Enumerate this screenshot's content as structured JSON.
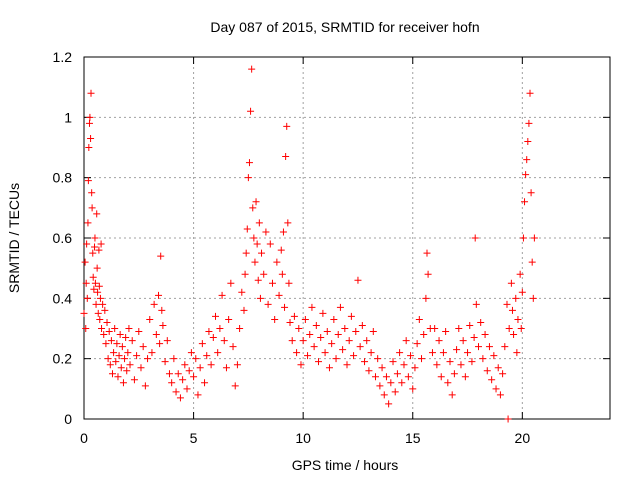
{
  "chart_data": {
    "type": "scatter",
    "title": "Day 087 of 2015, SRMTID for receiver hofn",
    "xlabel": "GPS time / hours",
    "ylabel": "SRMTID / TECUs",
    "xlim": [
      0,
      24
    ],
    "ylim": [
      0,
      1.2
    ],
    "x_ticks": [
      0,
      5,
      10,
      15,
      20
    ],
    "x_tick_labels": [
      "0",
      "5",
      "10",
      "15",
      "20"
    ],
    "y_ticks": [
      0,
      0.2,
      0.4,
      0.6,
      0.8,
      1.0,
      1.2
    ],
    "y_tick_labels": [
      "0",
      "0.2",
      "0.4",
      "0.6",
      "0.8",
      "1",
      "1.2"
    ],
    "grid": true,
    "marker": "+",
    "marker_color": "#ff0000",
    "series": [
      {
        "name": "SRMTID",
        "points": [
          [
            0.0,
            0.35
          ],
          [
            0.05,
            0.52
          ],
          [
            0.08,
            0.3
          ],
          [
            0.1,
            0.45
          ],
          [
            0.12,
            0.58
          ],
          [
            0.15,
            0.4
          ],
          [
            0.18,
            0.65
          ],
          [
            0.2,
            0.79
          ],
          [
            0.22,
            0.9
          ],
          [
            0.25,
            0.98
          ],
          [
            0.27,
            1.0
          ],
          [
            0.3,
            0.93
          ],
          [
            0.32,
            1.08
          ],
          [
            0.35,
            0.75
          ],
          [
            0.37,
            0.7
          ],
          [
            0.4,
            0.55
          ],
          [
            0.42,
            0.47
          ],
          [
            0.45,
            0.43
          ],
          [
            0.48,
            0.57
          ],
          [
            0.5,
            0.6
          ],
          [
            0.52,
            0.45
          ],
          [
            0.55,
            0.38
          ],
          [
            0.58,
            0.68
          ],
          [
            0.6,
            0.5
          ],
          [
            0.62,
            0.42
          ],
          [
            0.65,
            0.35
          ],
          [
            0.68,
            0.56
          ],
          [
            0.7,
            0.44
          ],
          [
            0.72,
            0.33
          ],
          [
            0.75,
            0.4
          ],
          [
            0.78,
            0.58
          ],
          [
            0.8,
            0.3
          ],
          [
            0.85,
            0.38
          ],
          [
            0.9,
            0.28
          ],
          [
            0.95,
            0.36
          ],
          [
            1.0,
            0.25
          ],
          [
            1.05,
            0.32
          ],
          [
            1.1,
            0.2
          ],
          [
            1.15,
            0.29
          ],
          [
            1.2,
            0.18
          ],
          [
            1.25,
            0.26
          ],
          [
            1.3,
            0.15
          ],
          [
            1.35,
            0.22
          ],
          [
            1.4,
            0.3
          ],
          [
            1.45,
            0.19
          ],
          [
            1.5,
            0.25
          ],
          [
            1.55,
            0.14
          ],
          [
            1.6,
            0.21
          ],
          [
            1.65,
            0.28
          ],
          [
            1.7,
            0.17
          ],
          [
            1.75,
            0.24
          ],
          [
            1.8,
            0.12
          ],
          [
            1.85,
            0.2
          ],
          [
            1.9,
            0.27
          ],
          [
            1.95,
            0.16
          ],
          [
            2.0,
            0.22
          ],
          [
            2.05,
            0.3
          ],
          [
            2.1,
            0.18
          ],
          [
            2.2,
            0.26
          ],
          [
            2.3,
            0.13
          ],
          [
            2.4,
            0.21
          ],
          [
            2.5,
            0.29
          ],
          [
            2.6,
            0.17
          ],
          [
            2.7,
            0.24
          ],
          [
            2.8,
            0.11
          ],
          [
            2.9,
            0.2
          ],
          [
            3.0,
            0.33
          ],
          [
            3.1,
            0.22
          ],
          [
            3.2,
            0.38
          ],
          [
            3.3,
            0.28
          ],
          [
            3.4,
            0.41
          ],
          [
            3.45,
            0.25
          ],
          [
            3.5,
            0.54
          ],
          [
            3.55,
            0.36
          ],
          [
            3.6,
            0.31
          ],
          [
            3.7,
            0.19
          ],
          [
            3.8,
            0.26
          ],
          [
            3.9,
            0.15
          ],
          [
            4.0,
            0.12
          ],
          [
            4.1,
            0.2
          ],
          [
            4.2,
            0.09
          ],
          [
            4.3,
            0.15
          ],
          [
            4.4,
            0.07
          ],
          [
            4.5,
            0.13
          ],
          [
            4.6,
            0.18
          ],
          [
            4.7,
            0.1
          ],
          [
            4.8,
            0.16
          ],
          [
            4.9,
            0.22
          ],
          [
            5.0,
            0.14
          ],
          [
            5.1,
            0.2
          ],
          [
            5.2,
            0.08
          ],
          [
            5.3,
            0.17
          ],
          [
            5.4,
            0.25
          ],
          [
            5.5,
            0.12
          ],
          [
            5.6,
            0.21
          ],
          [
            5.7,
            0.29
          ],
          [
            5.8,
            0.18
          ],
          [
            5.9,
            0.27
          ],
          [
            6.0,
            0.34
          ],
          [
            6.1,
            0.22
          ],
          [
            6.2,
            0.3
          ],
          [
            6.3,
            0.41
          ],
          [
            6.4,
            0.26
          ],
          [
            6.5,
            0.17
          ],
          [
            6.6,
            0.33
          ],
          [
            6.7,
            0.45
          ],
          [
            6.8,
            0.24
          ],
          [
            6.9,
            0.11
          ],
          [
            7.0,
            0.18
          ],
          [
            7.1,
            0.3
          ],
          [
            7.2,
            0.42
          ],
          [
            7.3,
            0.36
          ],
          [
            7.35,
            0.48
          ],
          [
            7.4,
            0.55
          ],
          [
            7.45,
            0.63
          ],
          [
            7.5,
            0.8
          ],
          [
            7.55,
            0.85
          ],
          [
            7.6,
            1.02
          ],
          [
            7.65,
            1.16
          ],
          [
            7.7,
            0.7
          ],
          [
            7.75,
            0.6
          ],
          [
            7.8,
            0.52
          ],
          [
            7.85,
            0.72
          ],
          [
            7.9,
            0.58
          ],
          [
            7.95,
            0.46
          ],
          [
            8.0,
            0.65
          ],
          [
            8.05,
            0.4
          ],
          [
            8.1,
            0.55
          ],
          [
            8.2,
            0.48
          ],
          [
            8.3,
            0.62
          ],
          [
            8.4,
            0.38
          ],
          [
            8.5,
            0.58
          ],
          [
            8.6,
            0.45
          ],
          [
            8.7,
            0.33
          ],
          [
            8.8,
            0.52
          ],
          [
            8.9,
            0.41
          ],
          [
            9.0,
            0.56
          ],
          [
            9.05,
            0.48
          ],
          [
            9.1,
            0.62
          ],
          [
            9.15,
            0.37
          ],
          [
            9.2,
            0.87
          ],
          [
            9.25,
            0.97
          ],
          [
            9.3,
            0.65
          ],
          [
            9.35,
            0.45
          ],
          [
            9.4,
            0.32
          ],
          [
            9.5,
            0.26
          ],
          [
            9.6,
            0.34
          ],
          [
            9.7,
            0.22
          ],
          [
            9.8,
            0.3
          ],
          [
            9.9,
            0.18
          ],
          [
            10.0,
            0.26
          ],
          [
            10.1,
            0.33
          ],
          [
            10.2,
            0.21
          ],
          [
            10.3,
            0.28
          ],
          [
            10.4,
            0.37
          ],
          [
            10.5,
            0.24
          ],
          [
            10.6,
            0.31
          ],
          [
            10.7,
            0.19
          ],
          [
            10.8,
            0.27
          ],
          [
            10.9,
            0.35
          ],
          [
            11.0,
            0.22
          ],
          [
            11.1,
            0.29
          ],
          [
            11.2,
            0.17
          ],
          [
            11.3,
            0.25
          ],
          [
            11.4,
            0.33
          ],
          [
            11.5,
            0.2
          ],
          [
            11.6,
            0.28
          ],
          [
            11.7,
            0.37
          ],
          [
            11.8,
            0.23
          ],
          [
            11.9,
            0.3
          ],
          [
            12.0,
            0.18
          ],
          [
            12.1,
            0.26
          ],
          [
            12.2,
            0.34
          ],
          [
            12.3,
            0.21
          ],
          [
            12.4,
            0.29
          ],
          [
            12.5,
            0.46
          ],
          [
            12.6,
            0.24
          ],
          [
            12.7,
            0.31
          ],
          [
            12.8,
            0.19
          ],
          [
            12.9,
            0.26
          ],
          [
            13.0,
            0.16
          ],
          [
            13.1,
            0.22
          ],
          [
            13.2,
            0.29
          ],
          [
            13.3,
            0.14
          ],
          [
            13.4,
            0.2
          ],
          [
            13.5,
            0.11
          ],
          [
            13.6,
            0.17
          ],
          [
            13.7,
            0.08
          ],
          [
            13.8,
            0.14
          ],
          [
            13.9,
            0.05
          ],
          [
            14.0,
            0.12
          ],
          [
            14.1,
            0.19
          ],
          [
            14.2,
            0.09
          ],
          [
            14.3,
            0.15
          ],
          [
            14.4,
            0.22
          ],
          [
            14.5,
            0.12
          ],
          [
            14.6,
            0.18
          ],
          [
            14.7,
            0.26
          ],
          [
            14.8,
            0.14
          ],
          [
            14.9,
            0.21
          ],
          [
            15.0,
            0.1
          ],
          [
            15.1,
            0.17
          ],
          [
            15.2,
            0.25
          ],
          [
            15.3,
            0.33
          ],
          [
            15.4,
            0.2
          ],
          [
            15.5,
            0.28
          ],
          [
            15.6,
            0.4
          ],
          [
            15.65,
            0.55
          ],
          [
            15.7,
            0.48
          ],
          [
            15.8,
            0.3
          ],
          [
            15.9,
            0.22
          ],
          [
            16.0,
            0.3
          ],
          [
            16.1,
            0.18
          ],
          [
            16.2,
            0.26
          ],
          [
            16.3,
            0.14
          ],
          [
            16.4,
            0.22
          ],
          [
            16.5,
            0.29
          ],
          [
            16.6,
            0.12
          ],
          [
            16.7,
            0.19
          ],
          [
            16.8,
            0.08
          ],
          [
            16.9,
            0.15
          ],
          [
            17.0,
            0.23
          ],
          [
            17.1,
            0.3
          ],
          [
            17.2,
            0.18
          ],
          [
            17.3,
            0.26
          ],
          [
            17.4,
            0.14
          ],
          [
            17.5,
            0.22
          ],
          [
            17.6,
            0.31
          ],
          [
            17.7,
            0.19
          ],
          [
            17.8,
            0.27
          ],
          [
            17.85,
            0.6
          ],
          [
            17.9,
            0.38
          ],
          [
            18.0,
            0.24
          ],
          [
            18.1,
            0.32
          ],
          [
            18.2,
            0.2
          ],
          [
            18.3,
            0.28
          ],
          [
            18.4,
            0.16
          ],
          [
            18.5,
            0.24
          ],
          [
            18.6,
            0.13
          ],
          [
            18.7,
            0.21
          ],
          [
            18.8,
            0.1
          ],
          [
            18.9,
            0.17
          ],
          [
            19.0,
            0.08
          ],
          [
            19.1,
            0.15
          ],
          [
            19.2,
            0.24
          ],
          [
            19.3,
            0.38
          ],
          [
            19.35,
            0.0
          ],
          [
            19.4,
            0.3
          ],
          [
            19.5,
            0.45
          ],
          [
            19.55,
            0.36
          ],
          [
            19.6,
            0.28
          ],
          [
            19.7,
            0.4
          ],
          [
            19.75,
            0.22
          ],
          [
            19.8,
            0.33
          ],
          [
            19.9,
            0.48
          ],
          [
            19.95,
            0.3
          ],
          [
            20.0,
            0.42
          ],
          [
            20.05,
            0.6
          ],
          [
            20.1,
            0.72
          ],
          [
            20.15,
            0.81
          ],
          [
            20.2,
            0.86
          ],
          [
            20.25,
            0.92
          ],
          [
            20.3,
            0.98
          ],
          [
            20.35,
            1.08
          ],
          [
            20.4,
            0.75
          ],
          [
            20.45,
            0.52
          ],
          [
            20.5,
            0.4
          ],
          [
            20.55,
            0.6
          ]
        ]
      }
    ]
  }
}
